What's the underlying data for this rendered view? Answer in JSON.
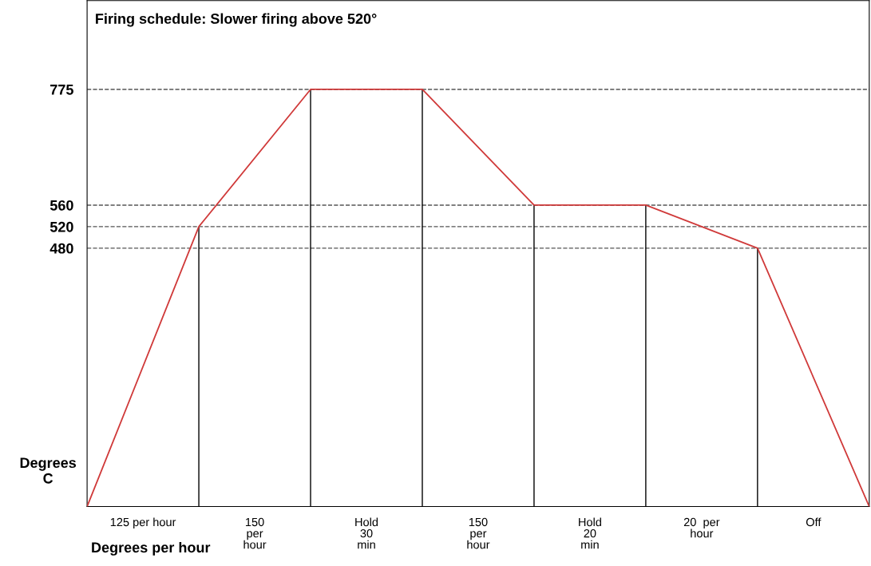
{
  "chart_data": {
    "type": "line",
    "title": "Firing schedule: Slower firing above 520°",
    "xlabel": "Degrees per hour",
    "ylabel": "Degrees\nC",
    "categories": [
      null,
      null,
      null,
      null,
      null,
      null,
      null,
      null
    ],
    "series": [
      {
        "color": "#d03a3a",
        "values": [
          0,
          520,
          775,
          775,
          560,
          560,
          480,
          0
        ]
      }
    ],
    "ylim": [
      0,
      940
    ],
    "yticks": [
      480,
      520,
      560,
      775
    ],
    "grid": false,
    "marker": "none",
    "line_style": "solid",
    "tick_labels": "y",
    "ref_lines": [
      {
        "axis": "y",
        "value": 775,
        "color": "#555555",
        "line_style": "dashed"
      },
      {
        "axis": "y",
        "value": 560,
        "color": "#555555",
        "line_style": "dashed"
      },
      {
        "axis": "y",
        "value": 520,
        "color": "#555555",
        "line_style": "dashed"
      },
      {
        "axis": "y",
        "value": 480,
        "color": "#555555",
        "line_style": "dashed"
      }
    ],
    "annotations": [
      "125 per hour",
      "150\nper\nhour",
      "Hold\n30\nmin",
      "150\nper\nhour",
      "Hold\n20\nmin",
      "20  per\nhour",
      "Off"
    ]
  }
}
